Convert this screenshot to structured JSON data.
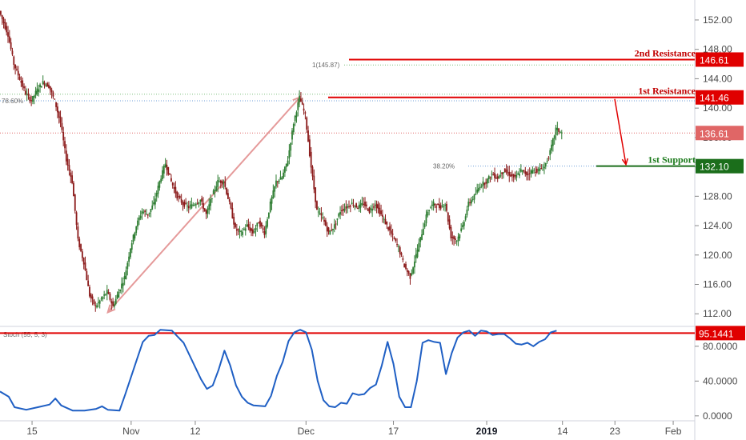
{
  "chart_data": [
    {
      "type": "candlestick",
      "title": "",
      "y_ticks": [
        "152.00",
        "148.00",
        "144.00",
        "140.00",
        "136.00",
        "132.00",
        "128.00",
        "124.00",
        "120.00",
        "116.00",
        "112.00"
      ],
      "y_tick_values": [
        152,
        148,
        144,
        140,
        136,
        132,
        128,
        124,
        120,
        116,
        112
      ],
      "ylim": [
        110.5,
        154.5
      ],
      "x_ticks": [
        {
          "label": "15",
          "day": 15,
          "bold": false
        },
        {
          "label": "Nov",
          "day": 32,
          "bold": false
        },
        {
          "label": "12",
          "day": 43,
          "bold": false
        },
        {
          "label": "Dec",
          "day": 62,
          "bold": false
        },
        {
          "label": "17",
          "day": 77,
          "bold": false
        },
        {
          "label": "2019",
          "day": 93,
          "bold": true
        },
        {
          "label": "14",
          "day": 106,
          "bold": false
        },
        {
          "label": "23",
          "day": 115,
          "bold": false
        },
        {
          "label": "Feb",
          "day": 125,
          "bold": false
        }
      ],
      "xlim": [
        9.5,
        128.7
      ],
      "price_path": [
        [
          9.5,
          153.2
        ],
        [
          11,
          150
        ],
        [
          12,
          146
        ],
        [
          13,
          144
        ],
        [
          14,
          142
        ],
        [
          15,
          141
        ],
        [
          16,
          142.5
        ],
        [
          17,
          143.5
        ],
        [
          18,
          143
        ],
        [
          19,
          141
        ],
        [
          20,
          138
        ],
        [
          21,
          133
        ],
        [
          22,
          130
        ],
        [
          23,
          122
        ],
        [
          24,
          119
        ],
        [
          25,
          114.5
        ],
        [
          26,
          113
        ],
        [
          27,
          114
        ],
        [
          28,
          115
        ],
        [
          29,
          113
        ],
        [
          30,
          115
        ],
        [
          31,
          117
        ],
        [
          32,
          121
        ],
        [
          33,
          124
        ],
        [
          34,
          126
        ],
        [
          35,
          125.5
        ],
        [
          36,
          127
        ],
        [
          37,
          130
        ],
        [
          38,
          132.5
        ],
        [
          39,
          130
        ],
        [
          40,
          128
        ],
        [
          41,
          127
        ],
        [
          42,
          126.5
        ],
        [
          43,
          127
        ],
        [
          44,
          127.5
        ],
        [
          45,
          125.5
        ],
        [
          46,
          128
        ],
        [
          47,
          130
        ],
        [
          48,
          130
        ],
        [
          49,
          127
        ],
        [
          50,
          123.5
        ],
        [
          51,
          123
        ],
        [
          52,
          124
        ],
        [
          53,
          123
        ],
        [
          54,
          124.5
        ],
        [
          55,
          123
        ],
        [
          56,
          127
        ],
        [
          57,
          130
        ],
        [
          58,
          130.5
        ],
        [
          59,
          133
        ],
        [
          60,
          138
        ],
        [
          61,
          141.46
        ],
        [
          62,
          139
        ],
        [
          63,
          132
        ],
        [
          64,
          126
        ],
        [
          65,
          125
        ],
        [
          66,
          123
        ],
        [
          67,
          124
        ],
        [
          68,
          126
        ],
        [
          69,
          126.5
        ],
        [
          70,
          127
        ],
        [
          71,
          126.5
        ],
        [
          72,
          127
        ],
        [
          73,
          126
        ],
        [
          74,
          127
        ],
        [
          75,
          125.5
        ],
        [
          76,
          124
        ],
        [
          77,
          122.5
        ],
        [
          78,
          121
        ],
        [
          79,
          118.5
        ],
        [
          80,
          117
        ],
        [
          81,
          120
        ],
        [
          82,
          123
        ],
        [
          83,
          126
        ],
        [
          84,
          127
        ],
        [
          85,
          126.5
        ],
        [
          86,
          127
        ],
        [
          87,
          122.5
        ],
        [
          88,
          122
        ],
        [
          89,
          124
        ],
        [
          90,
          127
        ],
        [
          91,
          128
        ],
        [
          92,
          129.5
        ],
        [
          93,
          130
        ],
        [
          94,
          131
        ],
        [
          95,
          130.5
        ],
        [
          96,
          131.5
        ],
        [
          97,
          131
        ],
        [
          98,
          130.5
        ],
        [
          99,
          131.5
        ],
        [
          100,
          131
        ],
        [
          101,
          131.5
        ],
        [
          102,
          131.5
        ],
        [
          103,
          132
        ],
        [
          104,
          134
        ],
        [
          105,
          137.2
        ],
        [
          106,
          136.6
        ]
      ],
      "annotations": [
        {
          "kind": "resistance",
          "label": "2nd Resistance",
          "price": 146.61,
          "tag": "146.61"
        },
        {
          "kind": "resistance",
          "label": "1st Resistance",
          "price": 141.46,
          "tag": "141.46"
        },
        {
          "kind": "support",
          "label": "1st Support",
          "price": 132.1,
          "tag": "132.10"
        },
        {
          "kind": "last_price",
          "price": 136.61,
          "tag": "136.61"
        }
      ],
      "fib_levels": [
        {
          "label": "1(145.87)",
          "price": 145.87
        },
        {
          "label": "38.20%",
          "price": 132.1
        },
        {
          "label": "",
          "price": 141.9
        },
        {
          "label": "78.60%",
          "price": 141.0
        }
      ],
      "trend_arrow": {
        "from": [
          28,
          112.2
        ],
        "to": [
          61,
          141.5
        ]
      },
      "colors": {
        "up": "#2e7d32",
        "down": "#8b1a1a",
        "resistance": "#e00000",
        "support": "#1b6e1b",
        "tag_last": "#e06666",
        "fib": "#7cbf7c",
        "fib2": "#6f9fd8",
        "arrow": "#e59a9a",
        "stoch": "#1f5fc4"
      }
    },
    {
      "type": "line",
      "title": "Stoch (55, 5, 3)",
      "y_ticks": [
        "80.0000",
        "40.0000",
        "0.0000"
      ],
      "y_tick_values": [
        80,
        40,
        0
      ],
      "ylim": [
        -2,
        101
      ],
      "series": [
        {
          "values": [
            [
              9.5,
              28
            ],
            [
              11,
              22
            ],
            [
              12,
              10
            ],
            [
              14,
              7
            ],
            [
              16,
              10
            ],
            [
              18,
              13
            ],
            [
              19,
              20
            ],
            [
              20,
              12
            ],
            [
              22,
              6
            ],
            [
              24,
              6
            ],
            [
              26,
              8
            ],
            [
              27,
              11
            ],
            [
              28,
              7
            ],
            [
              30,
              6
            ],
            [
              31,
              25
            ],
            [
              33,
              65
            ],
            [
              34,
              85
            ],
            [
              35,
              92
            ],
            [
              36,
              93
            ],
            [
              37,
              99
            ],
            [
              39,
              98
            ],
            [
              40,
              91
            ],
            [
              41,
              84
            ],
            [
              43,
              56
            ],
            [
              44,
              42
            ],
            [
              45,
              31
            ],
            [
              46,
              35
            ],
            [
              47,
              53
            ],
            [
              48,
              75
            ],
            [
              49,
              58
            ],
            [
              50,
              35
            ],
            [
              51,
              22
            ],
            [
              52,
              15
            ],
            [
              53,
              12
            ],
            [
              55,
              11
            ],
            [
              56,
              23
            ],
            [
              57,
              46
            ],
            [
              58,
              62
            ],
            [
              59,
              86
            ],
            [
              60,
              96
            ],
            [
              61,
              99
            ],
            [
              62,
              96
            ],
            [
              63,
              76
            ],
            [
              64,
              40
            ],
            [
              65,
              18
            ],
            [
              66,
              11
            ],
            [
              67,
              10
            ],
            [
              68,
              15
            ],
            [
              69,
              14
            ],
            [
              70,
              26
            ],
            [
              71,
              24
            ],
            [
              72,
              25
            ],
            [
              73,
              32
            ],
            [
              74,
              36
            ],
            [
              75,
              58
            ],
            [
              76,
              85
            ],
            [
              77,
              60
            ],
            [
              78,
              22
            ],
            [
              79,
              10
            ],
            [
              80,
              10
            ],
            [
              81,
              40
            ],
            [
              82,
              84
            ],
            [
              83,
              87
            ],
            [
              84,
              85
            ],
            [
              85,
              84
            ],
            [
              86,
              48
            ],
            [
              87,
              72
            ],
            [
              88,
              90
            ],
            [
              89,
              96
            ],
            [
              90,
              98
            ],
            [
              91,
              92
            ],
            [
              92,
              98
            ],
            [
              93,
              97
            ],
            [
              94,
              93
            ],
            [
              95,
              94
            ],
            [
              96,
              94
            ],
            [
              97,
              89
            ],
            [
              98,
              83
            ],
            [
              99,
              82
            ],
            [
              100,
              84
            ],
            [
              101,
              80
            ],
            [
              102,
              85
            ],
            [
              103,
              88
            ],
            [
              104,
              96
            ],
            [
              105,
              98
            ]
          ]
        }
      ],
      "levels": [
        {
          "price": 95.1441,
          "tag": "95.1441"
        }
      ]
    }
  ]
}
